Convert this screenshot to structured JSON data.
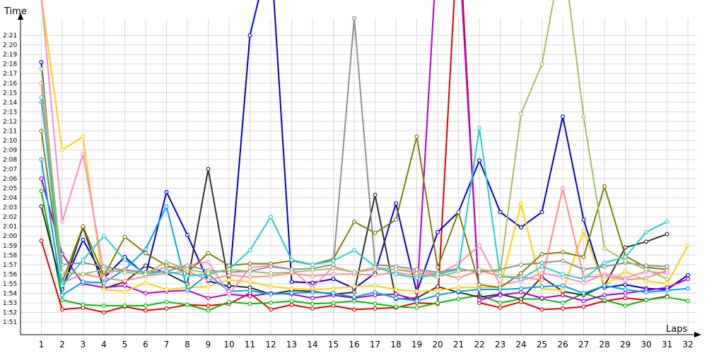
{
  "chart_data": {
    "type": "line",
    "ylabel": "Time",
    "xlabel": "Laps",
    "x": [
      1,
      2,
      3,
      4,
      5,
      6,
      7,
      8,
      9,
      10,
      11,
      12,
      13,
      14,
      15,
      16,
      17,
      18,
      19,
      20,
      21,
      22,
      23,
      24,
      25,
      26,
      27,
      28,
      29,
      30,
      31,
      32
    ],
    "xlim": [
      0,
      32.5
    ],
    "ylim_seconds": [
      107,
      146
    ],
    "grid": true,
    "legend": "none",
    "y_ticks": [
      "1:51",
      "1:52",
      "1:53",
      "1:54",
      "1:55",
      "1:56",
      "1:57",
      "1:58",
      "1:59",
      "2:00",
      "2:01",
      "2:02",
      "2:03",
      "2:04",
      "2:05",
      "2:06",
      "2:07",
      "2:08",
      "2:09",
      "2:10",
      "2:11",
      "2:12",
      "2:13",
      "2:14",
      "2:15",
      "2:16",
      "2:17",
      "2:18",
      "2:19",
      "2:20",
      "2:21"
    ],
    "series": [
      {
        "color": "#e00000",
        "values": [
          119.5,
          112.3,
          112.5,
          112.0,
          112.6,
          112.2,
          112.4,
          112.8,
          112.7,
          112.9,
          114.0,
          112.3,
          112.8,
          112.4,
          112.7,
          112.3,
          112.4,
          112.5,
          113.0,
          112.9,
          153.0,
          113.0,
          112.5,
          113.1,
          112.3,
          112.4,
          112.6,
          113.2,
          113.5,
          113.3,
          113.7,
          null
        ]
      },
      {
        "color": "#00c000",
        "values": [
          124.7,
          113.3,
          112.8,
          112.7,
          112.7,
          112.7,
          113.1,
          112.8,
          112.2,
          113.1,
          112.9,
          113.0,
          113.2,
          112.9,
          113.0,
          113.2,
          112.9,
          112.6,
          112.5,
          113.0,
          113.4,
          113.8,
          113.0,
          113.4,
          113.4,
          113.0,
          114.0,
          113.3,
          112.7,
          113.3,
          113.6,
          113.2
        ]
      },
      {
        "color": "#0000d0",
        "values": [
          138.2,
          114.6,
          119.6,
          115.6,
          117.8,
          115.9,
          124.6,
          120.1,
          115.3,
          114.7,
          141.0,
          150.0,
          115.2,
          115.1,
          115.5,
          114.5,
          116.1,
          123.4,
          114.1,
          120.4,
          122.5,
          127.9,
          122.5,
          120.9,
          122.5,
          132.5,
          121.7,
          114.6,
          114.9,
          114.5,
          114.4,
          115.9
        ]
      },
      {
        "color": "#303030",
        "values": [
          123.1,
          114.4,
          120.9,
          114.5,
          115.2,
          116.9,
          116.1,
          115.0,
          127.0,
          114.8,
          114.6,
          113.9,
          114.3,
          114.2,
          113.9,
          114.1,
          124.3,
          113.4,
          113.5,
          114.7,
          114.1,
          113.6,
          113.9,
          113.4,
          115.7,
          114.2,
          113.8,
          114.8,
          118.8,
          119.4,
          120.2,
          null
        ]
      },
      {
        "color": "#b000d0",
        "values": [
          126.0,
          118.1,
          115.0,
          114.6,
          114.8,
          114.0,
          114.2,
          114.3,
          113.5,
          113.9,
          113.7,
          114.0,
          113.9,
          113.5,
          113.8,
          113.5,
          113.8,
          113.9,
          113.3,
          151.0,
          151.0,
          113.3,
          113.8,
          114.1,
          113.5,
          113.8,
          113.2,
          113.8,
          114.0,
          114.3,
          114.6,
          115.5
        ]
      },
      {
        "color": "#ffd000",
        "values": [
          145.0,
          129.0,
          130.4,
          114.4,
          114.2,
          115.1,
          114.4,
          114.6,
          114.7,
          115.4,
          115.2,
          114.7,
          114.5,
          114.4,
          114.5,
          114.7,
          114.8,
          114.4,
          114.2,
          114.3,
          114.6,
          114.6,
          114.6,
          123.4,
          114.5,
          114.3,
          120.5,
          114.8,
          116.3,
          115.3,
          115.0,
          119.0
        ]
      },
      {
        "color": "#00a0ff",
        "values": [
          128.0,
          113.8,
          115.2,
          115.1,
          116.5,
          118.6,
          123.1,
          114.3,
          116.0,
          114.2,
          114.3,
          113.9,
          114.0,
          114.1,
          114.0,
          113.6,
          114.1,
          113.5,
          113.2,
          113.8,
          114.2,
          114.4,
          114.4,
          114.5,
          114.7,
          114.8,
          114.0,
          114.8,
          114.4,
          114.1,
          114.3,
          114.5
        ]
      },
      {
        "color": "#ff88c8",
        "values": [
          145.0,
          121.5,
          128.6,
          116.1,
          116.5,
          116.2,
          116.7,
          116.9,
          117.3,
          113.9,
          116.7,
          116.9,
          116.5,
          114.6,
          116.8,
          116.2,
          116.5,
          116.5,
          116.3,
          116.0,
          117.1,
          119.0,
          114.9,
          115.3,
          116.1,
          115.7,
          115.1,
          116.0,
          115.6,
          116.3,
          116.1,
          null
        ]
      },
      {
        "color": "#808000",
        "values": [
          131.0,
          115.2,
          121.0,
          115.8,
          119.9,
          118.2,
          116.9,
          116.2,
          118.2,
          116.9,
          117.1,
          117.1,
          117.4,
          117.0,
          117.6,
          121.5,
          120.3,
          121.7,
          130.4,
          116.7,
          122.5,
          114.9,
          114.6,
          116.1,
          118.1,
          118.3,
          117.8,
          125.2,
          117.9,
          116.7,
          116.5,
          null
        ]
      },
      {
        "color": "#ff8888",
        "values": [
          136.0,
          115.1,
          116.0,
          115.6,
          115.3,
          115.8,
          116.1,
          116.3,
          115.4,
          115.9,
          115.7,
          115.8,
          116.1,
          115.8,
          116.0,
          116.0,
          115.9,
          116.2,
          115.8,
          116.1,
          115.6,
          116.4,
          115.8,
          115.7,
          115.4,
          125.0,
          115.7,
          115.8,
          115.4,
          115.6,
          116.4,
          null
        ]
      },
      {
        "color": "#909090",
        "values": [
          134.0,
          117.0,
          117.2,
          116.8,
          116.4,
          116.2,
          116.3,
          116.9,
          116.4,
          116.2,
          116.3,
          116.8,
          116.5,
          116.6,
          117.0,
          142.8,
          117.0,
          116.8,
          116.5,
          116.2,
          116.6,
          116.2,
          116.5,
          117.0,
          117.2,
          117.4,
          116.5,
          116.8,
          117.2,
          116.9,
          116.8,
          null
        ]
      },
      {
        "color": "#20d0d0",
        "values": [
          134.5,
          114.8,
          117.5,
          120.0,
          117.5,
          116.0,
          116.3,
          115.8,
          116.0,
          116.5,
          118.5,
          122.0,
          117.5,
          117.0,
          117.4,
          118.5,
          116.8,
          116.0,
          115.6,
          116.0,
          116.5,
          131.3,
          115.8,
          115.5,
          116.8,
          116.0,
          115.5,
          117.2,
          117.8,
          120.4,
          121.5,
          null
        ]
      },
      {
        "color": "#a0c060",
        "values": [
          137.5,
          116.2,
          116.0,
          116.5,
          116.2,
          116.0,
          117.3,
          116.5,
          116.1,
          116.5,
          116.3,
          116.1,
          116.2,
          116.4,
          116.6,
          116.2,
          116.7,
          116.5,
          116.1,
          115.7,
          116.3,
          116.5,
          116.2,
          132.8,
          138.0,
          150.0,
          132.5,
          118.7,
          117.4,
          116.5,
          115.5,
          null
        ]
      }
    ]
  }
}
